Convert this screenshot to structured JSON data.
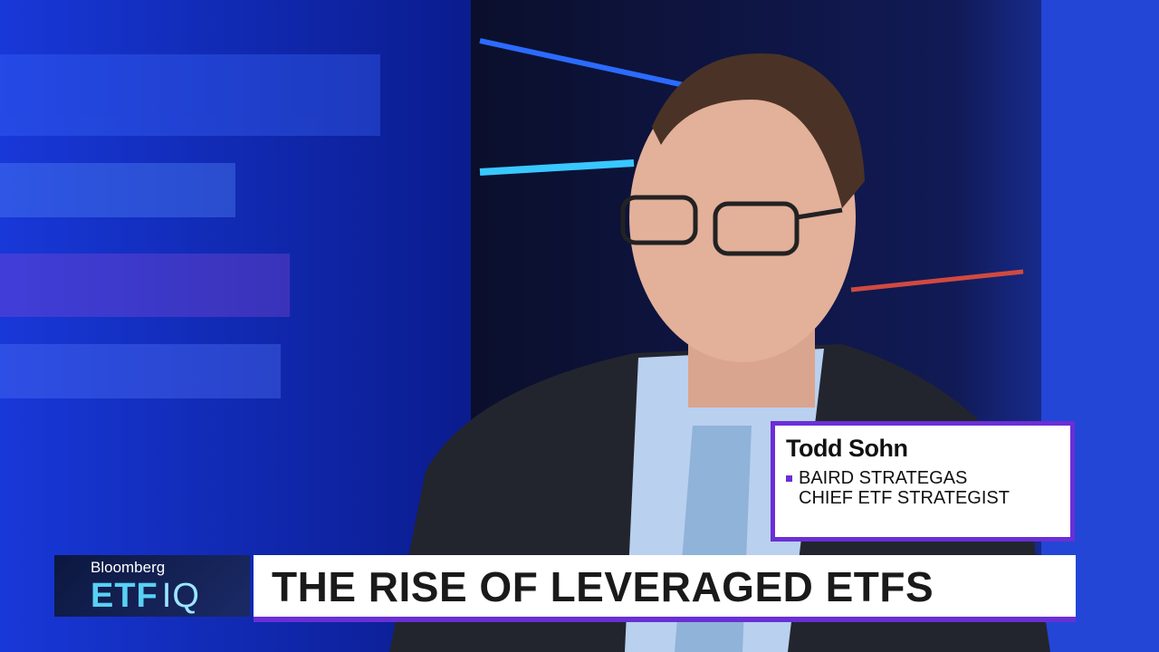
{
  "logo": {
    "brand": "Bloomberg",
    "show": "ETF",
    "show_suffix": "IQ"
  },
  "lower_third": {
    "name": "Todd Sohn",
    "affiliation": "BAIRD STRATEGAS",
    "role": "CHIEF ETF STRATEGIST"
  },
  "headline": "THE RISE OF LEVERAGED ETFS"
}
